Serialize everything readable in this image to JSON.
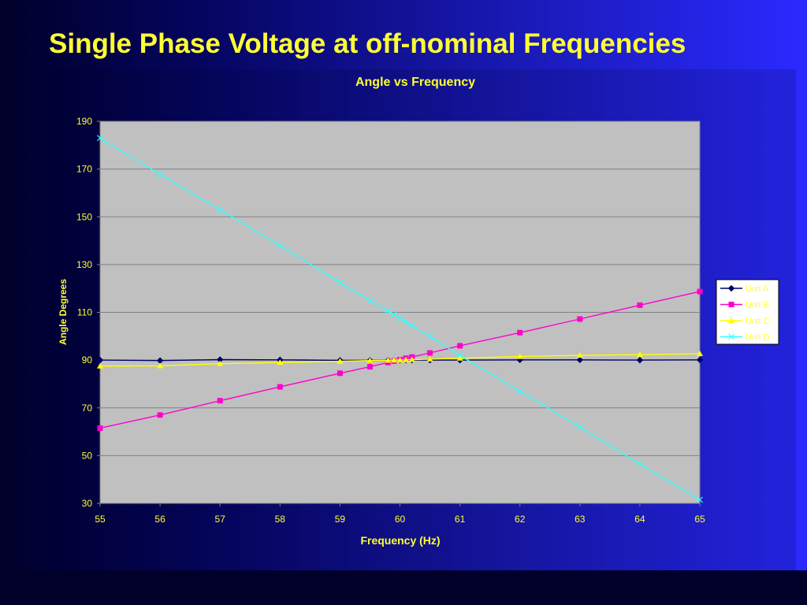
{
  "slide": {
    "title": "Single Phase Voltage at off-nominal Frequencies"
  },
  "colors": {
    "title": "#ffff33",
    "chart_text": "#ffff33",
    "plot_background": "#c0c0c0",
    "gridline": "#808080",
    "background_gradient": [
      "#00002a",
      "#050560",
      "#1a1ab8",
      "#2a2aff"
    ]
  },
  "chart_data": {
    "type": "line",
    "title": "Angle vs Frequency",
    "xlabel": "Frequency (Hz)",
    "ylabel": "Angle Degrees",
    "xlim": [
      55,
      65
    ],
    "ylim": [
      30,
      190
    ],
    "xticks": [
      55,
      56,
      57,
      58,
      59,
      60,
      61,
      62,
      63,
      64,
      65
    ],
    "yticks": [
      30,
      50,
      70,
      90,
      110,
      130,
      150,
      170,
      190
    ],
    "grid": "horizontal",
    "legend_position": "right",
    "series": [
      {
        "name": "Unit A",
        "color": "#000066",
        "marker": "diamond",
        "points": [
          [
            55,
            90.0
          ],
          [
            56,
            89.8
          ],
          [
            57,
            90.2
          ],
          [
            58,
            90.1
          ],
          [
            59,
            89.9
          ],
          [
            59.5,
            89.9
          ],
          [
            59.8,
            89.9
          ],
          [
            59.9,
            89.9
          ],
          [
            60,
            90.0
          ],
          [
            60.1,
            90.0
          ],
          [
            60.2,
            90.0
          ],
          [
            60.5,
            90.0
          ],
          [
            61,
            90.0
          ],
          [
            62,
            90.1
          ],
          [
            63,
            90.1
          ],
          [
            64,
            90.0
          ],
          [
            65,
            90.1
          ]
        ]
      },
      {
        "name": "Unit B",
        "color": "#ff00cc",
        "marker": "square",
        "points": [
          [
            55,
            61.5
          ],
          [
            56,
            67.0
          ],
          [
            57,
            73.0
          ],
          [
            58,
            78.8
          ],
          [
            59,
            84.5
          ],
          [
            59.5,
            87.2
          ],
          [
            59.8,
            89.0
          ],
          [
            59.9,
            89.6
          ],
          [
            60,
            90.2
          ],
          [
            60.1,
            90.8
          ],
          [
            60.2,
            91.3
          ],
          [
            60.5,
            93.0
          ],
          [
            61,
            96.0
          ],
          [
            62,
            101.5
          ],
          [
            63,
            107.2
          ],
          [
            64,
            113.0
          ],
          [
            65,
            118.7
          ]
        ]
      },
      {
        "name": "Unit C",
        "color": "#ffff00",
        "marker": "triangle",
        "points": [
          [
            55,
            87.5
          ],
          [
            56,
            87.6
          ],
          [
            57,
            88.5
          ],
          [
            58,
            89.0
          ],
          [
            59,
            89.5
          ],
          [
            59.5,
            89.8
          ],
          [
            59.8,
            89.9
          ],
          [
            59.9,
            90.0
          ],
          [
            60,
            90.0
          ],
          [
            60.1,
            90.1
          ],
          [
            60.2,
            90.2
          ],
          [
            60.5,
            90.4
          ],
          [
            61,
            90.8
          ],
          [
            62,
            91.5
          ],
          [
            63,
            92.0
          ],
          [
            64,
            92.3
          ],
          [
            65,
            92.7
          ]
        ]
      },
      {
        "name": "Unit D",
        "color": "#33ffff",
        "marker": "x",
        "points": [
          [
            55,
            183.0
          ],
          [
            56,
            167.8
          ],
          [
            57,
            153.0
          ],
          [
            58,
            138.0
          ],
          [
            59,
            122.5
          ],
          [
            59.5,
            115.0
          ],
          [
            59.8,
            110.5
          ],
          [
            59.9,
            109.0
          ],
          [
            60,
            107.5
          ],
          [
            60.1,
            106.0
          ],
          [
            60.2,
            104.5
          ],
          [
            60.5,
            100.0
          ],
          [
            61,
            92.0
          ],
          [
            62,
            77.0
          ],
          [
            63,
            62.0
          ],
          [
            64,
            46.5
          ],
          [
            65,
            31.5
          ]
        ]
      }
    ]
  }
}
